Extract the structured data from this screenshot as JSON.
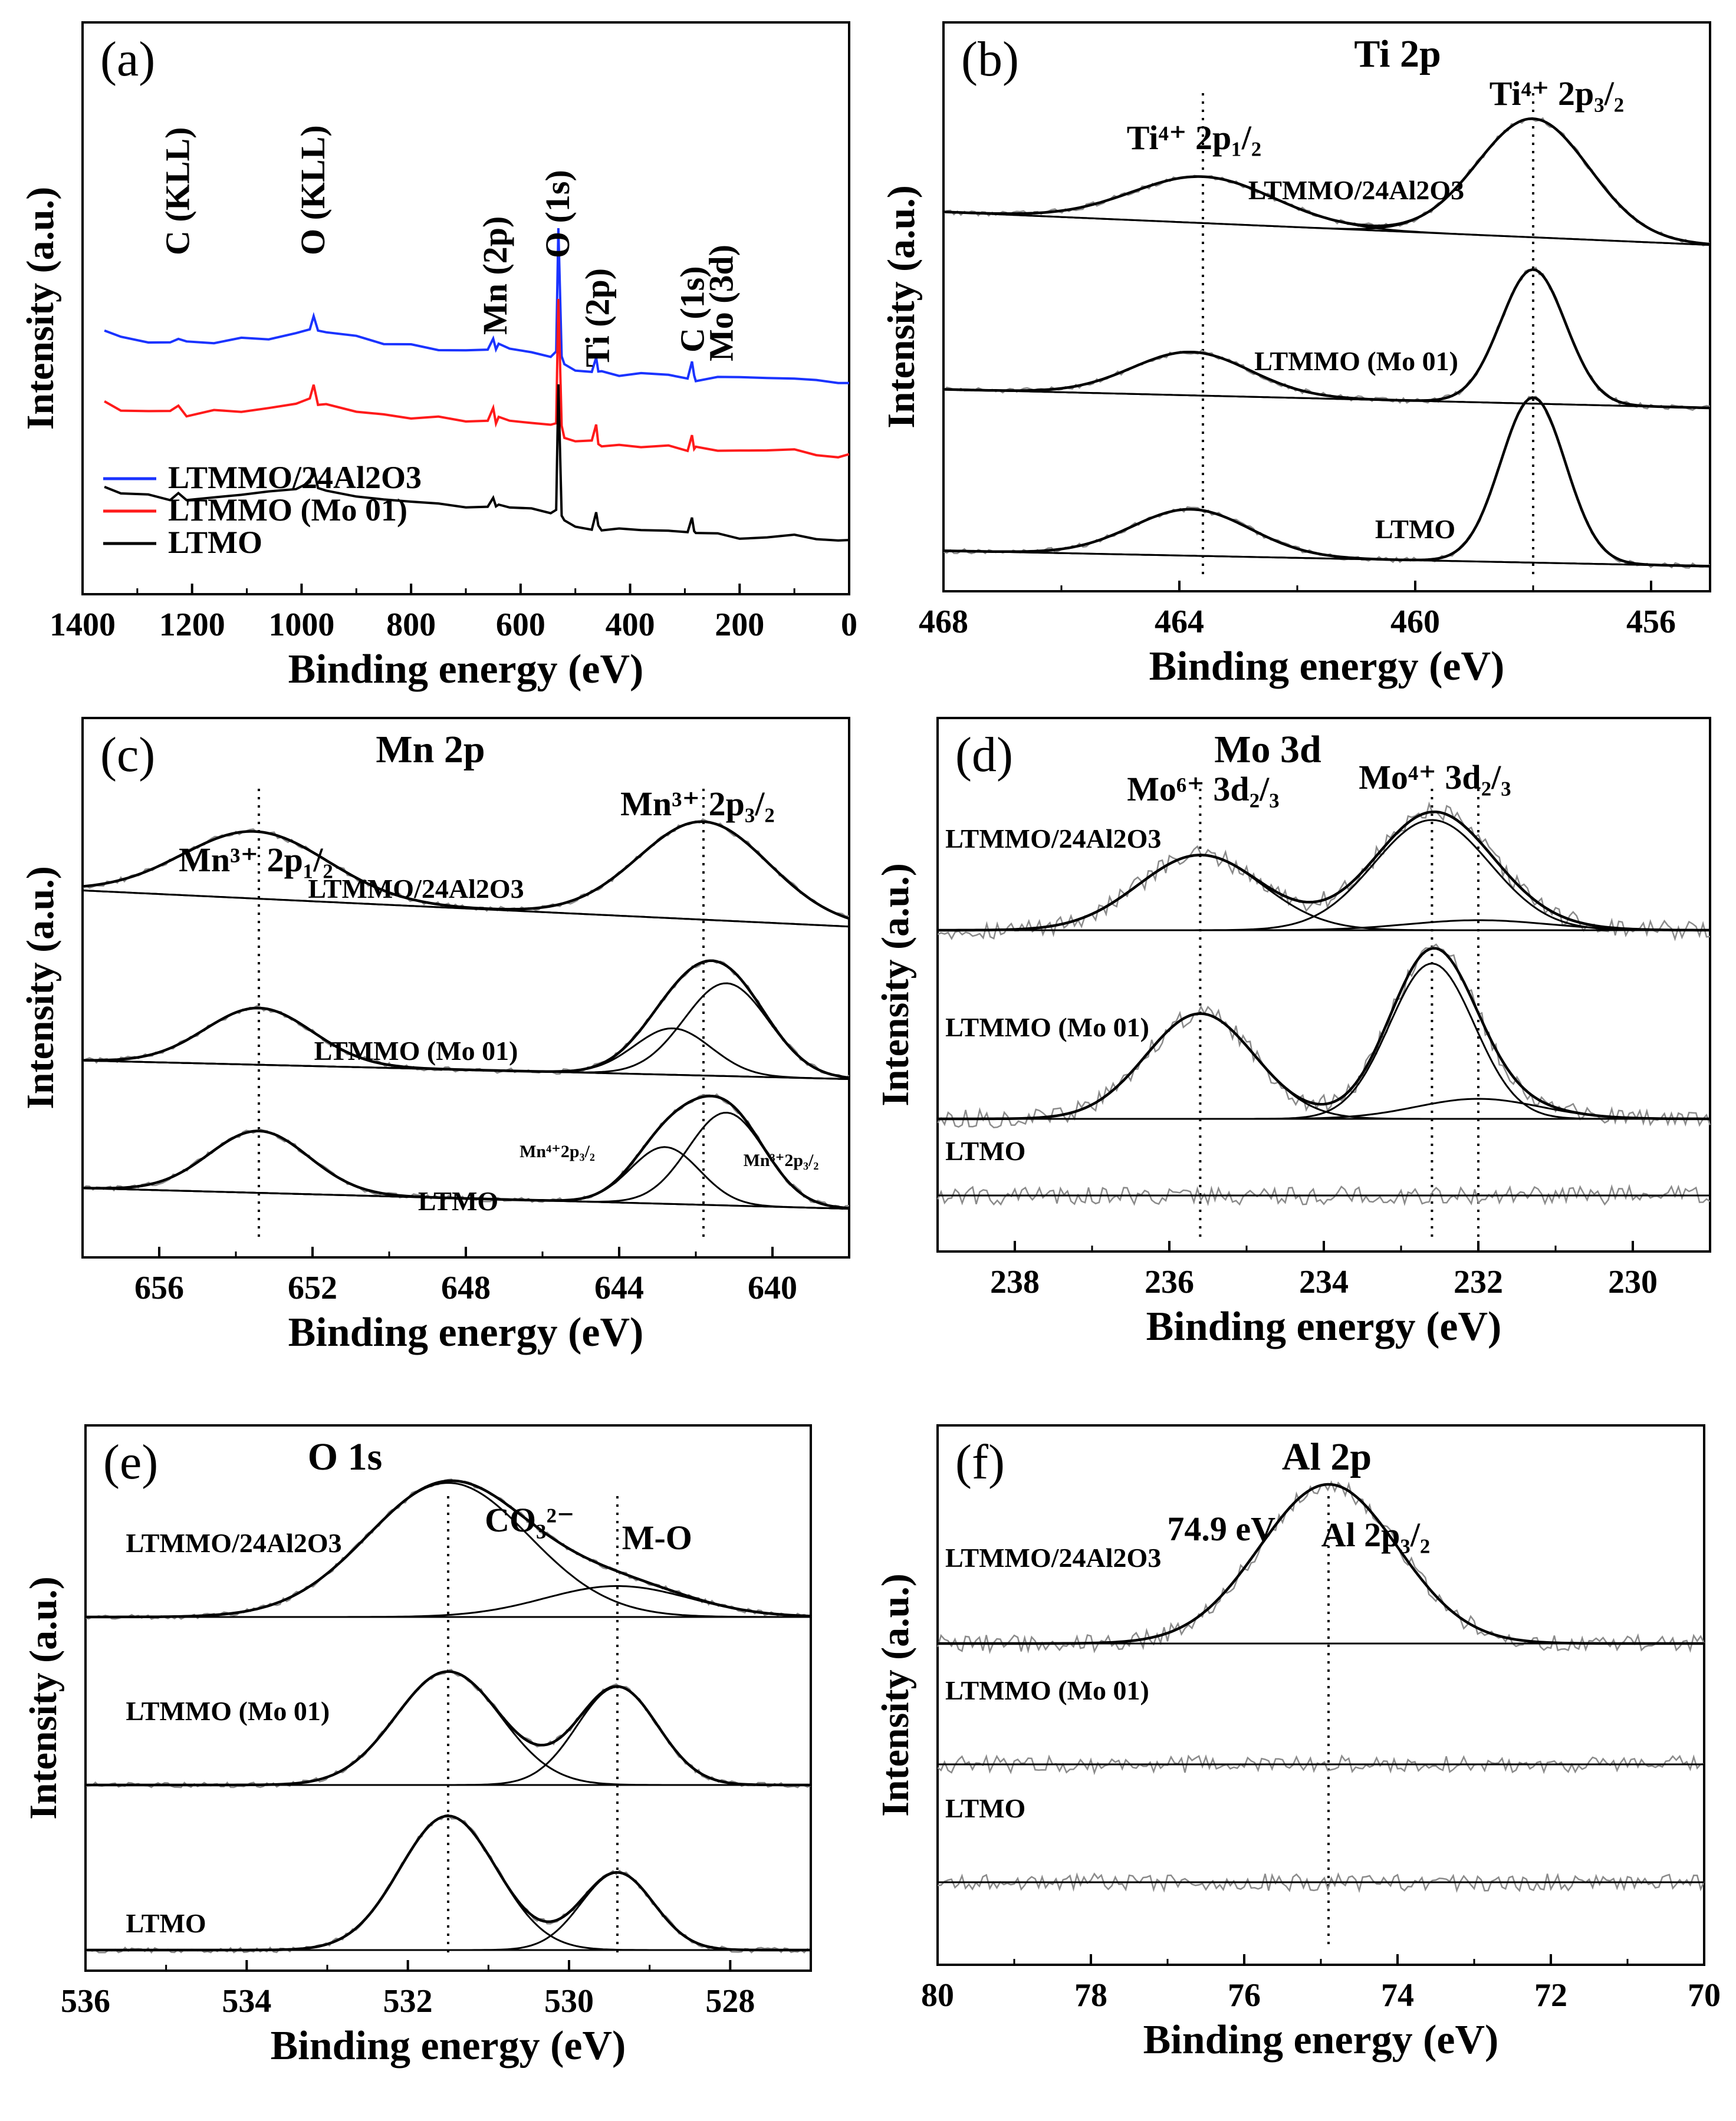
{
  "figure": {
    "common_xlabel": "Binding energy (eV)",
    "common_ylabel": "Intensity (a.u.)"
  },
  "chart_data": [
    {
      "id": "a",
      "type": "line",
      "panel_label": "(a)",
      "title": "",
      "xlabel": "Binding energy (eV)",
      "ylabel": "Intensity (a.u.)",
      "xlim": [
        1400,
        0
      ],
      "xticks": [
        1400,
        1200,
        1000,
        800,
        600,
        400,
        200,
        0
      ],
      "series": [
        {
          "name": "LTMMO/24Al2O3",
          "color": "#1a33ff",
          "offset": 2.0
        },
        {
          "name": "LTMMO (Mo 01)",
          "color": "#ff1a1a",
          "offset": 1.0
        },
        {
          "name": "LTMO",
          "color": "#000000",
          "offset": 0.0
        }
      ],
      "survey_shape": {
        "x": [
          1360,
          1330,
          1280,
          1240,
          1225,
          1210,
          1160,
          1110,
          1060,
          1010,
          985,
          978,
          970,
          955,
          900,
          850,
          800,
          750,
          700,
          660,
          650,
          645,
          640,
          620,
          580,
          545,
          535,
          531,
          525,
          520,
          500,
          470,
          462,
          458,
          452,
          420,
          380,
          330,
          295,
          287,
          283,
          280,
          240,
          200,
          150,
          100,
          60,
          20,
          0
        ],
        "y": [
          1.0,
          0.92,
          0.88,
          0.83,
          0.91,
          0.82,
          0.86,
          0.88,
          0.92,
          0.97,
          1.05,
          1.28,
          1.0,
          0.95,
          0.9,
          0.82,
          0.78,
          0.75,
          0.72,
          0.7,
          0.88,
          0.72,
          0.78,
          0.74,
          0.72,
          0.65,
          0.7,
          2.6,
          0.6,
          0.5,
          0.42,
          0.4,
          0.62,
          0.4,
          0.36,
          0.35,
          0.33,
          0.31,
          0.3,
          0.53,
          0.3,
          0.28,
          0.27,
          0.26,
          0.25,
          0.24,
          0.23,
          0.2,
          0.2
        ]
      },
      "peak_labels": [
        {
          "text": "C (KLL)",
          "x": 1225
        },
        {
          "text": "O (KLL)",
          "x": 978
        },
        {
          "text": "Mn (2p)",
          "x": 645
        },
        {
          "text": "O (1s)",
          "x": 531
        },
        {
          "text": "Ti (2p)",
          "x": 458
        },
        {
          "text": "C (1s)",
          "x": 285
        },
        {
          "text": "Mo (3d)",
          "x": 232
        }
      ],
      "legend": [
        "LTMMO/24Al2O3",
        "LTMMO (Mo 01)",
        "LTMO"
      ]
    },
    {
      "id": "b",
      "type": "line",
      "panel_label": "(b)",
      "title": "Ti 2p",
      "xlabel": "Binding energy (eV)",
      "ylabel": "Intensity (a.u.)",
      "xlim": [
        468,
        455
      ],
      "xticks": [
        468,
        464,
        460,
        456
      ],
      "vlines": [
        463.6,
        458.0
      ],
      "annotations": [
        {
          "text": "Ti⁴⁺ 2p₁/₂",
          "x": 463.6
        },
        {
          "text": "Ti⁴⁺ 2p₃/₂",
          "x": 458.0
        }
      ],
      "series": [
        {
          "name": "LTMMO/24Al2O3",
          "baseline": [
            0.42,
            0.1
          ],
          "peaks": [
            {
              "center": 463.6,
              "amp": 0.45,
              "width": 1.2
            },
            {
              "center": 458.0,
              "amp": 1.15,
              "width": 0.95
            }
          ]
        },
        {
          "name": "LTMMO (Mo 01)",
          "baseline": [
            0.3,
            0.12
          ],
          "peaks": [
            {
              "center": 463.8,
              "amp": 0.42,
              "width": 1.0
            },
            {
              "center": 458.0,
              "amp": 1.3,
              "width": 0.55
            }
          ]
        },
        {
          "name": "LTMO",
          "baseline": [
            0.25,
            0.1
          ],
          "peaks": [
            {
              "center": 463.8,
              "amp": 0.45,
              "width": 1.0
            },
            {
              "center": 458.0,
              "amp": 1.6,
              "width": 0.55
            }
          ]
        }
      ]
    },
    {
      "id": "c",
      "type": "line",
      "panel_label": "(c)",
      "title": "Mn 2p",
      "xlabel": "Binding energy (eV)",
      "ylabel": "Intensity (a.u.)",
      "xlim": [
        658,
        638
      ],
      "xticks": [
        656,
        652,
        648,
        644,
        640
      ],
      "vlines": [
        653.4,
        641.8
      ],
      "annotations": [
        {
          "text": "Mn³⁺ 2p₁/₂",
          "x": 653.4
        },
        {
          "text": "Mn³⁺ 2p₃/₂",
          "x": 641.8
        },
        {
          "text": "Mn⁴⁺2p₃/₂",
          "x": 643.0
        },
        {
          "text": "Mn³⁺2p₃/₂",
          "x": 640.7
        }
      ],
      "series": [
        {
          "name": "LTMMO/24Al2O3",
          "baseline": [
            0.5,
            0.15
          ],
          "peaks": [
            {
              "center": 653.5,
              "amp": 0.65,
              "width": 1.9
            },
            {
              "center": 641.8,
              "amp": 0.95,
              "width": 1.7
            }
          ]
        },
        {
          "name": "LTMMO (Mo 01)",
          "baseline": [
            0.28,
            0.1
          ],
          "peaks": [
            {
              "center": 653.4,
              "amp": 0.55,
              "width": 1.4
            },
            {
              "center": 642.6,
              "amp": 0.45,
              "width": 1.0
            },
            {
              "center": 641.2,
              "amp": 0.9,
              "width": 1.1
            }
          ]
        },
        {
          "name": "LTMO",
          "baseline": [
            0.3,
            0.1
          ],
          "peaks": [
            {
              "center": 653.4,
              "amp": 0.6,
              "width": 1.3
            },
            {
              "center": 642.8,
              "amp": 0.55,
              "width": 0.9
            },
            {
              "center": 641.2,
              "amp": 0.9,
              "width": 1.0
            }
          ]
        }
      ]
    },
    {
      "id": "d",
      "type": "line",
      "panel_label": "(d)",
      "title": "Mo 3d",
      "xlabel": "Binding energy (eV)",
      "ylabel": "Intensity (a.u.)",
      "xlim": [
        239,
        229
      ],
      "xticks": [
        238,
        236,
        234,
        232,
        230
      ],
      "vlines": [
        235.6,
        232.6,
        232.0
      ],
      "annotations": [
        {
          "text": "Mo⁶⁺ 3d₂/₃",
          "x": 235.6
        },
        {
          "text": "Mo⁴⁺ 3d₂/₃",
          "x": 232.6
        }
      ],
      "series": [
        {
          "name": "LTMMO/24Al2O3",
          "baseline": [
            0.0,
            0.0
          ],
          "noise": 0.09,
          "peaks": [
            {
              "center": 235.6,
              "amp": 0.75,
              "width": 0.8
            },
            {
              "center": 232.6,
              "amp": 1.1,
              "width": 0.75
            },
            {
              "center": 232.0,
              "amp": 0.1,
              "width": 0.9
            }
          ]
        },
        {
          "name": "LTMMO (Mo 01)",
          "baseline": [
            0.0,
            0.0
          ],
          "noise": 0.09,
          "peaks": [
            {
              "center": 235.6,
              "amp": 1.05,
              "width": 0.7
            },
            {
              "center": 232.6,
              "amp": 1.55,
              "width": 0.55
            },
            {
              "center": 232.0,
              "amp": 0.2,
              "width": 0.8
            }
          ]
        },
        {
          "name": "LTMO",
          "baseline": [
            0.0,
            0.0
          ],
          "noise": 0.09,
          "peaks": []
        }
      ]
    },
    {
      "id": "e",
      "type": "line",
      "panel_label": "(e)",
      "title": "O 1s",
      "xlabel": "Binding energy (eV)",
      "ylabel": "Intensity (a.u.)",
      "xlim": [
        536,
        527
      ],
      "xticks": [
        536,
        534,
        532,
        530,
        528
      ],
      "vlines": [
        531.5,
        529.4
      ],
      "annotations": [
        {
          "text": "CO₃²⁻",
          "x": 531.0
        },
        {
          "text": "M-O",
          "x": 529.2
        }
      ],
      "series": [
        {
          "name": "LTMMO/24Al2O3",
          "baseline": [
            0.0,
            0.0
          ],
          "peaks": [
            {
              "center": 531.5,
              "amp": 1.3,
              "width": 1.0
            },
            {
              "center": 529.4,
              "amp": 0.3,
              "width": 0.9
            }
          ]
        },
        {
          "name": "LTMMO (Mo 01)",
          "baseline": [
            0.0,
            0.0
          ],
          "peaks": [
            {
              "center": 531.5,
              "amp": 1.1,
              "width": 0.65
            },
            {
              "center": 529.4,
              "amp": 0.95,
              "width": 0.5
            }
          ]
        },
        {
          "name": "LTMO",
          "baseline": [
            0.0,
            0.0
          ],
          "peaks": [
            {
              "center": 531.5,
              "amp": 1.3,
              "width": 0.6
            },
            {
              "center": 529.4,
              "amp": 0.75,
              "width": 0.45
            }
          ]
        }
      ]
    },
    {
      "id": "f",
      "type": "line",
      "panel_label": "(f)",
      "title": "Al 2p",
      "xlabel": "Binding energy (eV)",
      "ylabel": "Intensity (a.u.)",
      "xlim": [
        80,
        70
      ],
      "xticks": [
        80,
        78,
        76,
        74,
        72,
        70
      ],
      "vlines": [
        74.9
      ],
      "annotations": [
        {
          "text": "74.9 eV",
          "x": 74.9
        },
        {
          "text": "Al 2p₃/₂",
          "x": 74.9
        }
      ],
      "series": [
        {
          "name": "LTMMO/24Al2O3",
          "baseline": [
            0.0,
            0.0
          ],
          "noise": 0.08,
          "peaks": [
            {
              "center": 74.9,
              "amp": 1.5,
              "width": 0.9
            }
          ]
        },
        {
          "name": "LTMMO (Mo 01)",
          "baseline": [
            0.0,
            0.0
          ],
          "noise": 0.08,
          "peaks": []
        },
        {
          "name": "LTMO",
          "baseline": [
            0.0,
            0.0
          ],
          "noise": 0.08,
          "peaks": []
        }
      ]
    }
  ]
}
